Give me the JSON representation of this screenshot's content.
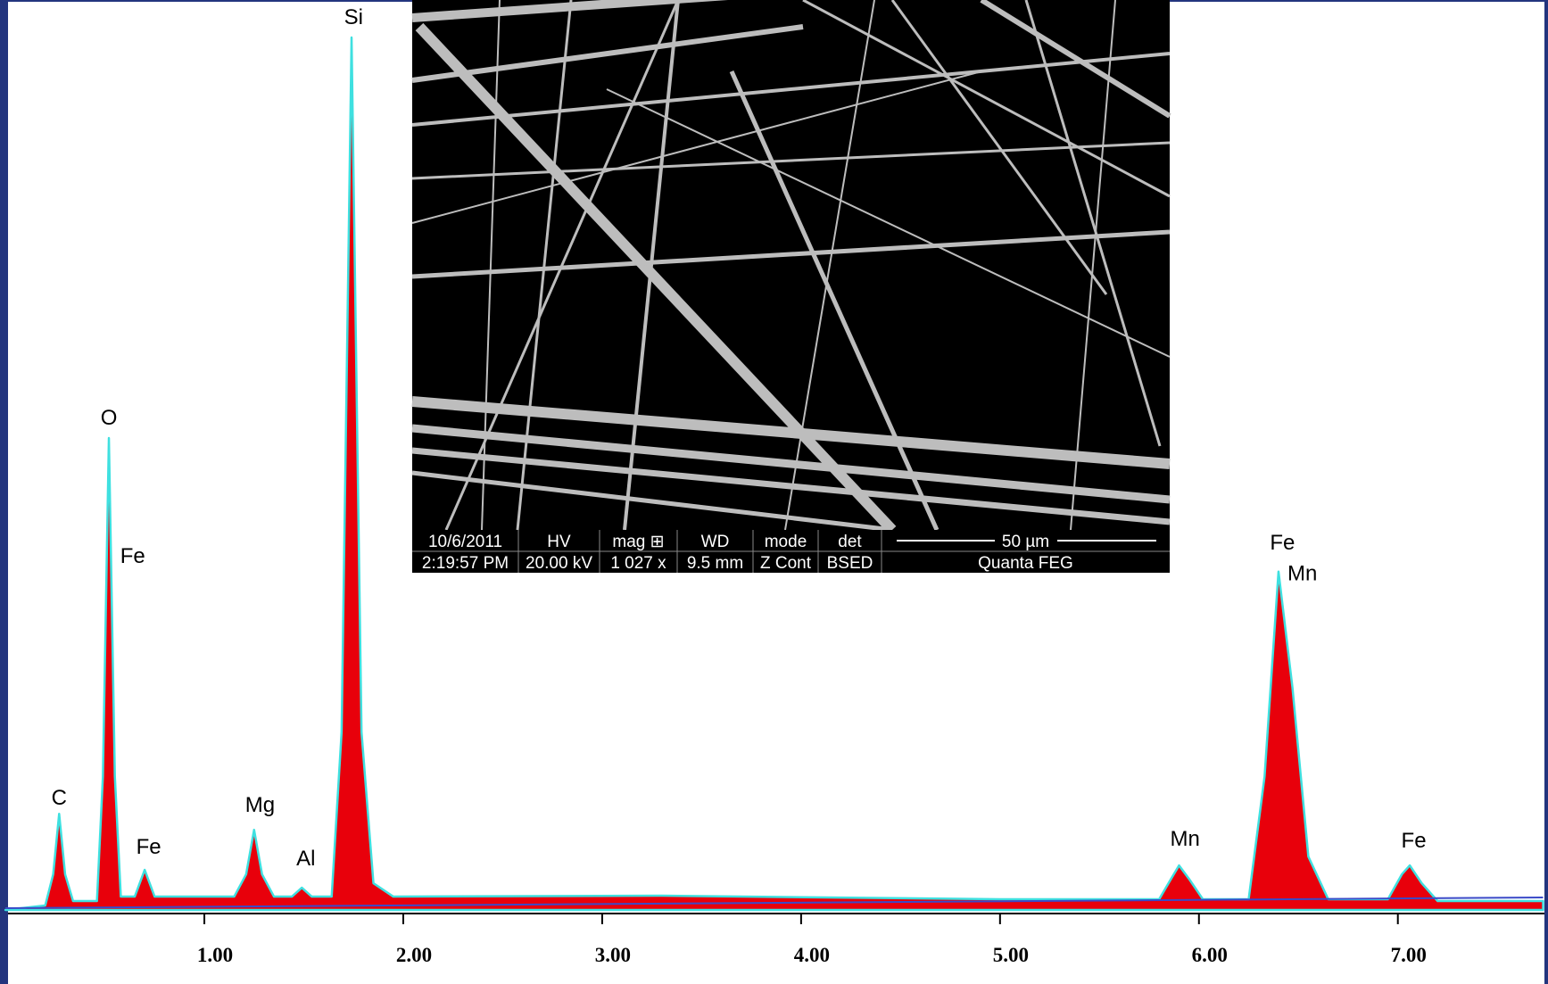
{
  "chart_data": {
    "type": "area",
    "x": [
      0.0,
      0.2,
      0.24,
      0.27,
      0.3,
      0.34,
      0.46,
      0.49,
      0.52,
      0.55,
      0.58,
      0.65,
      0.7,
      0.75,
      1.15,
      1.21,
      1.25,
      1.29,
      1.35,
      1.44,
      1.49,
      1.54,
      1.64,
      1.69,
      1.74,
      1.79,
      1.85,
      1.95,
      3.3,
      5.0,
      5.8,
      5.86,
      5.9,
      5.95,
      6.02,
      6.25,
      6.33,
      6.4,
      6.47,
      6.55,
      6.65,
      6.95,
      7.02,
      7.06,
      7.12,
      7.2,
      7.73
    ],
    "values": [
      0.0,
      0.5,
      4,
      10.8,
      4,
      1.0,
      1.0,
      15,
      53,
      15,
      1.5,
      1.5,
      4.5,
      1.5,
      1.5,
      4,
      9,
      4,
      1.5,
      1.5,
      2.5,
      1.5,
      1.5,
      20,
      98,
      20,
      3,
      1.5,
      1.6,
      1.2,
      1.2,
      3.5,
      5,
      3.5,
      1.2,
      1.2,
      15,
      38,
      25,
      6,
      1.2,
      1.2,
      4,
      5,
      3,
      1,
      1
    ],
    "color": "#e8000b",
    "line_color": "#3fe0e0",
    "xlim": [
      0,
      7.73
    ],
    "ylim": [
      0,
      100
    ],
    "xticks": [
      {
        "value": 1,
        "label": "1.00"
      },
      {
        "value": 2,
        "label": "2.00"
      },
      {
        "value": 3,
        "label": "3.00"
      },
      {
        "value": 4,
        "label": "4.00"
      },
      {
        "value": 5,
        "label": "5.00"
      },
      {
        "value": 6,
        "label": "6.00"
      },
      {
        "value": 7,
        "label": "7.00"
      }
    ],
    "annotations": [
      {
        "text": "C",
        "x": 0.27,
        "y": 11.8
      },
      {
        "text": "O",
        "x": 0.52,
        "y": 54.5
      },
      {
        "text": "Fe",
        "x": 0.64,
        "y": 39
      },
      {
        "text": "Fe",
        "x": 0.72,
        "y": 6.3
      },
      {
        "text": "Mg",
        "x": 1.28,
        "y": 11
      },
      {
        "text": "Al",
        "x": 1.51,
        "y": 5
      },
      {
        "text": "Si",
        "x": 1.75,
        "y": 99.5
      },
      {
        "text": "Mn",
        "x": 5.93,
        "y": 7.2
      },
      {
        "text": "Fe",
        "x": 6.42,
        "y": 40.5
      },
      {
        "text": "Mn",
        "x": 6.52,
        "y": 37
      },
      {
        "text": "Fe",
        "x": 7.08,
        "y": 7
      }
    ]
  },
  "inset": {
    "caption": [
      [
        "10/6/2011",
        "HV",
        "mag ⊞",
        "WD",
        "mode",
        "det",
        "50 µm"
      ],
      [
        "2:19:57 PM",
        "20.00 kV",
        "1 027 x",
        "9.5 mm",
        "Z Cont",
        "BSED",
        "Quanta FEG"
      ]
    ]
  }
}
